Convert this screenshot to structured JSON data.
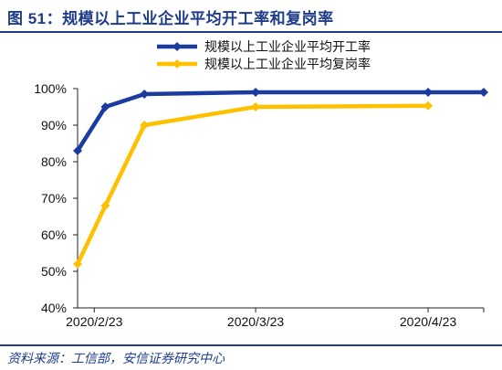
{
  "header": {
    "title": "图 51：规模以上工业企业平均开工率和复岗率"
  },
  "footer": {
    "source": "资料来源：工信部，安信证券研究中心"
  },
  "colors": {
    "title": "#1f3c88",
    "series1": "#1b3c9e",
    "series2": "#ffc000"
  },
  "chart_data": {
    "type": "line",
    "x": [
      "2020/2/20",
      "2020/2/25",
      "2020/3/3",
      "2020/3/23",
      "2020/4/23",
      "2020/5/3"
    ],
    "xticks": [
      "2020/2/23",
      "2020/3/23",
      "2020/4/23"
    ],
    "ylim": [
      40,
      100
    ],
    "yticks": [
      40,
      50,
      60,
      70,
      80,
      90,
      100
    ],
    "yticklabels": [
      "40%",
      "50%",
      "60%",
      "70%",
      "80%",
      "90%",
      "100%"
    ],
    "series": [
      {
        "name": "规模以上工业企业平均开工率",
        "points": [
          [
            "2020/2/20",
            83
          ],
          [
            "2020/2/25",
            95
          ],
          [
            "2020/3/3",
            98.5
          ],
          [
            "2020/3/23",
            99
          ],
          [
            "2020/4/23",
            99
          ],
          [
            "2020/5/3",
            99
          ]
        ],
        "color": "#1b3c9e",
        "marker": "diamond"
      },
      {
        "name": "规模以上工业企业平均复岗率",
        "points": [
          [
            "2020/2/20",
            52
          ],
          [
            "2020/2/25",
            68
          ],
          [
            "2020/3/3",
            90
          ],
          [
            "2020/3/23",
            95
          ],
          [
            "2020/4/23",
            95.3
          ]
        ],
        "color": "#ffc000",
        "marker": "diamond"
      }
    ],
    "legend": "top-right",
    "grid": false
  }
}
